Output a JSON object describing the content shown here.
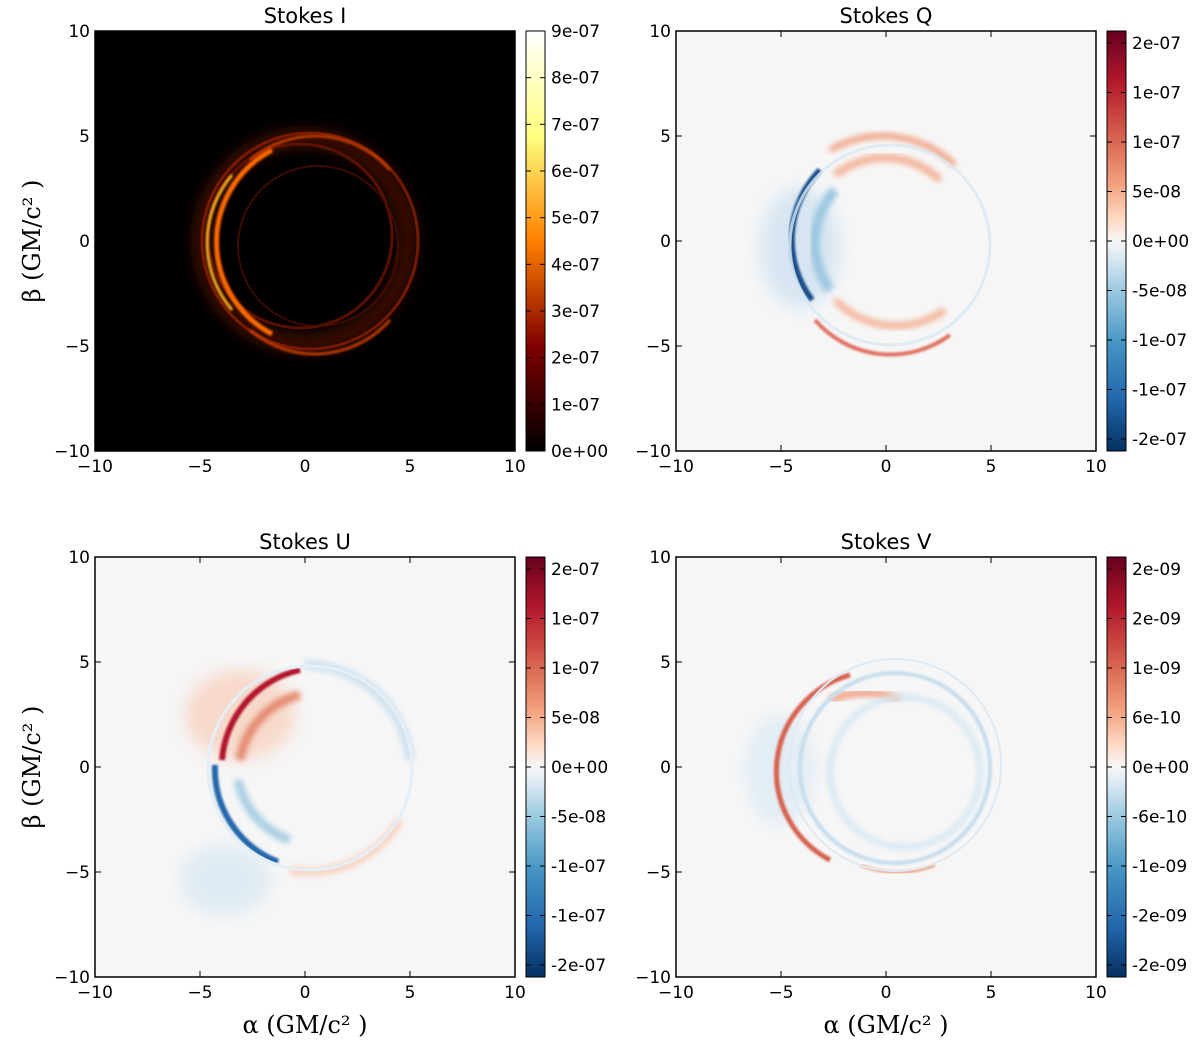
{
  "chart_data": [
    {
      "type": "heatmap",
      "title": "Stokes I",
      "colormap": "afmhot",
      "xlim": [
        -10,
        10
      ],
      "ylim": [
        -10,
        10
      ],
      "xticks": [
        "−10",
        "−5",
        "0",
        "5",
        "10"
      ],
      "yticks": [
        "10",
        "5",
        "0",
        "−5",
        "−10"
      ],
      "ylabel": "β (GM/c² )",
      "xlabel": "",
      "colorbar": {
        "range": [
          0,
          9e-07
        ],
        "labels": [
          "9e-07",
          "8e-07",
          "7e-07",
          "6e-07",
          "5e-07",
          "4e-07",
          "3e-07",
          "2e-07",
          "1e-07",
          "0e+00"
        ]
      },
      "features": "bright photon ring of radius ~5 centered near (0,0), brightest on the left side near α≈-4.5"
    },
    {
      "type": "heatmap",
      "title": "Stokes Q",
      "colormap": "RdBu_r",
      "xlim": [
        -10,
        10
      ],
      "ylim": [
        -10,
        10
      ],
      "xticks": [
        "−10",
        "−5",
        "0",
        "5",
        "10"
      ],
      "yticks": [
        "10",
        "5",
        "0",
        "−5",
        "−10"
      ],
      "ylabel": "",
      "xlabel": "",
      "colorbar": {
        "range": [
          -2.2e-07,
          2.2e-07
        ],
        "labels": [
          "2e-07",
          "1e-07",
          "1e-07",
          "5e-08",
          "0e+00",
          "-5e-08",
          "-1e-07",
          "-1e-07",
          "-2e-07"
        ]
      },
      "features": "positive arcs on top and bottom of ring, strong negative arc on the left side"
    },
    {
      "type": "heatmap",
      "title": "Stokes U",
      "colormap": "RdBu_r",
      "xlim": [
        -10,
        10
      ],
      "ylim": [
        -10,
        10
      ],
      "xticks": [
        "−10",
        "−5",
        "0",
        "5",
        "10"
      ],
      "yticks": [
        "10",
        "5",
        "0",
        "−5",
        "−10"
      ],
      "ylabel": "β (GM/c² )",
      "xlabel": "α (GM/c² )",
      "colorbar": {
        "range": [
          -2.2e-07,
          2.2e-07
        ],
        "labels": [
          "2e-07",
          "1e-07",
          "1e-07",
          "5e-08",
          "0e+00",
          "-5e-08",
          "-1e-07",
          "-1e-07",
          "-2e-07"
        ]
      },
      "features": "positive upper-left arc, negative lower-left arc, weak negative upper-right, weak positive lower-right"
    },
    {
      "type": "heatmap",
      "title": "Stokes V",
      "colormap": "RdBu_r",
      "xlim": [
        -10,
        10
      ],
      "ylim": [
        -10,
        10
      ],
      "xticks": [
        "−10",
        "−5",
        "0",
        "5",
        "10"
      ],
      "yticks": [
        "10",
        "5",
        "0",
        "−5",
        "−10"
      ],
      "ylabel": "",
      "xlabel": "α (GM/c² )",
      "colorbar": {
        "range": [
          -2.9e-09,
          2.9e-09
        ],
        "labels": [
          "2e-09",
          "2e-09",
          "1e-09",
          "6e-10",
          "0e+00",
          "-6e-10",
          "-1e-09",
          "-2e-09",
          "-2e-09"
        ]
      },
      "features": "weak positive arc on left side, faint negative rings elsewhere"
    }
  ]
}
